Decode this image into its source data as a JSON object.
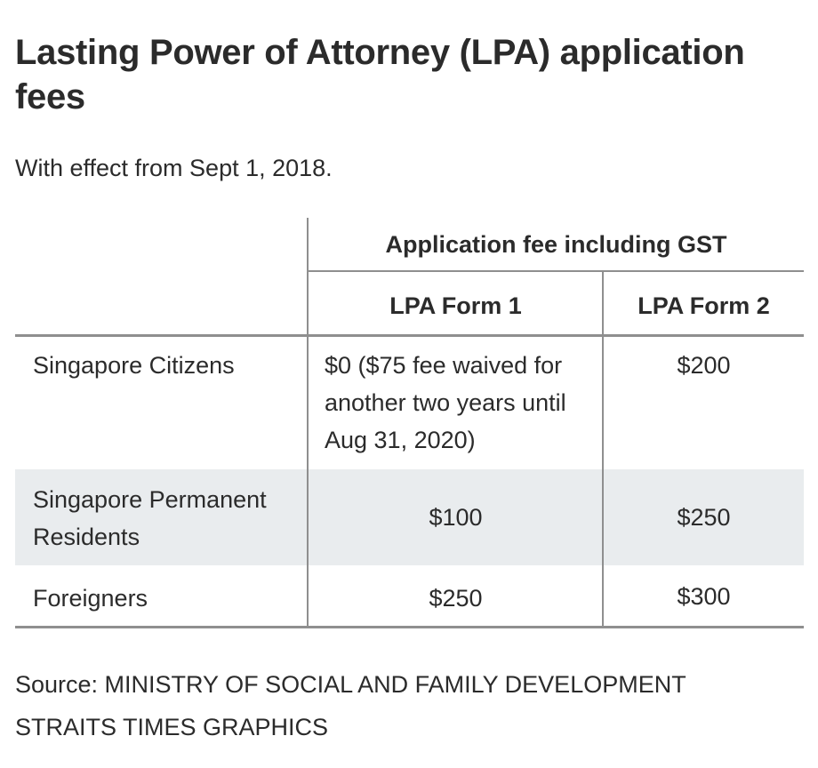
{
  "title": "Lasting Power of Attorney (LPA) application fees",
  "subtitle": "With effect from Sept 1, 2018.",
  "chart_data": {
    "type": "table",
    "group_header": "Application fee including GST",
    "columns": [
      "LPA Form 1",
      "LPA Form 2"
    ],
    "rows": [
      {
        "label": "Singapore Citizens",
        "form1": "$0 ($75 fee waived for another two years until Aug 31, 2020)",
        "form2": "$200"
      },
      {
        "label": "Singapore Permanent Residents",
        "form1": "$100",
        "form2": "$250"
      },
      {
        "label": "Foreigners",
        "form1": "$250",
        "form2": "$300"
      }
    ],
    "shaded_row_color": "#e9ecee",
    "rule_color": "#8f8f8f"
  },
  "source": "Source: MINISTRY OF SOCIAL AND FAMILY DEVELOPMENT",
  "credit": "STRAITS TIMES GRAPHICS"
}
